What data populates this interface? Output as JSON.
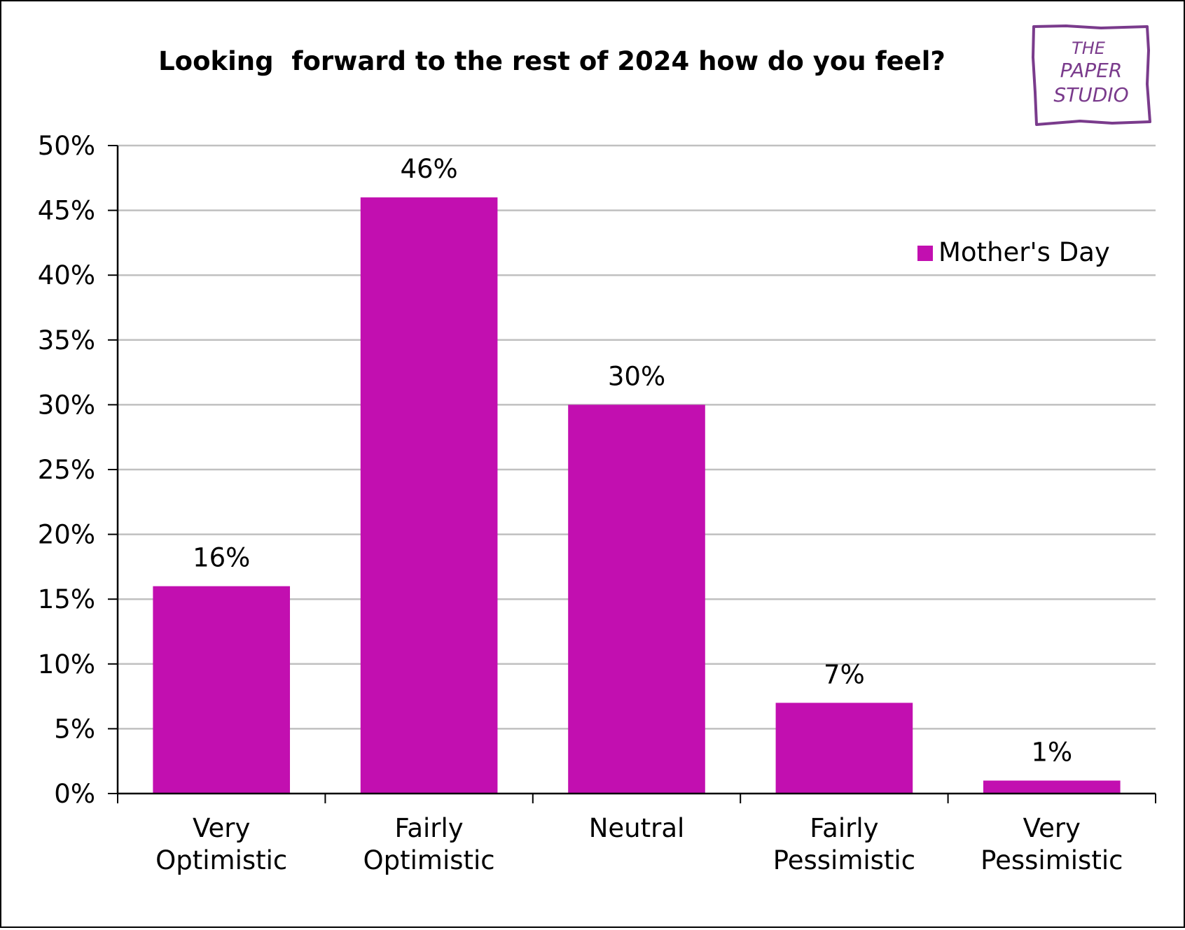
{
  "logo": {
    "text_lines": [
      "THE",
      "PAPER",
      "STUDIO"
    ],
    "color": "#7a3b8c"
  },
  "chart_data": {
    "type": "bar",
    "title": "Looking  forward to the rest of 2024 how do you feel?",
    "categories": [
      [
        "Very",
        "Optimistic"
      ],
      [
        "Fairly",
        "Optimistic"
      ],
      [
        "Neutral"
      ],
      [
        "Fairly",
        "Pessimistic"
      ],
      [
        "Very",
        "Pessimistic"
      ]
    ],
    "series": [
      {
        "name": "Mother's Day",
        "values": [
          16,
          46,
          30,
          7,
          1
        ],
        "color": "#c20fb0"
      }
    ],
    "data_labels": [
      "16%",
      "46%",
      "30%",
      "7%",
      "1%"
    ],
    "y_ticks": [
      "0%",
      "5%",
      "10%",
      "15%",
      "20%",
      "25%",
      "30%",
      "35%",
      "40%",
      "45%",
      "50%"
    ],
    "ylim": [
      0,
      50
    ],
    "grid": true,
    "gridline_color": "#c0c0c0",
    "legend_position": "top-right",
    "xlabel": "",
    "ylabel": ""
  }
}
